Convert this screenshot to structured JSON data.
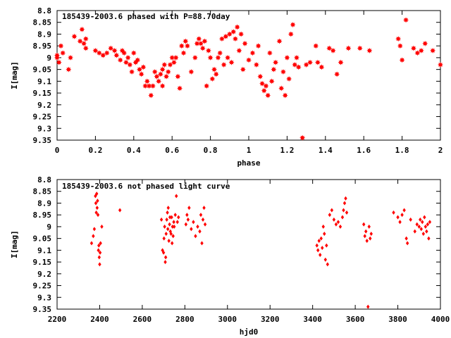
{
  "chart_data": [
    {
      "type": "scatter",
      "title": "185439-2003.6 phased with P=88.70day",
      "xlabel": "phase",
      "ylabel": "I[mag]",
      "xlim": [
        0,
        2
      ],
      "ylim": [
        8.8,
        9.35
      ],
      "y_inverted": true,
      "grid": false,
      "marker": "star",
      "color": "#ff0000",
      "x_ticks": [
        "0",
        "0.2",
        "0.4",
        "0.6",
        "0.8",
        "1",
        "1.2",
        "1.4",
        "1.6",
        "1.8",
        "2"
      ],
      "y_ticks": [
        "8.8",
        "8.85",
        "8.9",
        "8.95",
        "9",
        "9.05",
        "9.1",
        "9.15",
        "9.2",
        "9.25",
        "9.3",
        "9.35"
      ],
      "points": [
        [
          0.0,
          9.0
        ],
        [
          0.0,
          8.99
        ],
        [
          0.01,
          9.02
        ],
        [
          0.02,
          8.95
        ],
        [
          0.03,
          8.98
        ],
        [
          0.06,
          9.05
        ],
        [
          0.07,
          9.0
        ],
        [
          0.09,
          8.91
        ],
        [
          0.12,
          8.93
        ],
        [
          0.13,
          8.88
        ],
        [
          0.14,
          8.94
        ],
        [
          0.15,
          8.96
        ],
        [
          0.15,
          8.92
        ],
        [
          0.2,
          8.97
        ],
        [
          0.22,
          8.98
        ],
        [
          0.24,
          8.99
        ],
        [
          0.26,
          8.98
        ],
        [
          0.28,
          8.96
        ],
        [
          0.3,
          8.97
        ],
        [
          0.31,
          8.99
        ],
        [
          0.33,
          9.01
        ],
        [
          0.34,
          8.97
        ],
        [
          0.35,
          8.98
        ],
        [
          0.36,
          9.02
        ],
        [
          0.37,
          9.0
        ],
        [
          0.38,
          9.03
        ],
        [
          0.39,
          9.06
        ],
        [
          0.4,
          8.98
        ],
        [
          0.41,
          9.02
        ],
        [
          0.42,
          9.01
        ],
        [
          0.43,
          9.05
        ],
        [
          0.44,
          9.07
        ],
        [
          0.45,
          9.04
        ],
        [
          0.46,
          9.12
        ],
        [
          0.47,
          9.1
        ],
        [
          0.48,
          9.12
        ],
        [
          0.49,
          9.16
        ],
        [
          0.5,
          9.12
        ],
        [
          0.51,
          9.06
        ],
        [
          0.52,
          9.08
        ],
        [
          0.53,
          9.1
        ],
        [
          0.54,
          9.07
        ],
        [
          0.55,
          9.12
        ],
        [
          0.55,
          9.05
        ],
        [
          0.56,
          9.03
        ],
        [
          0.57,
          9.08
        ],
        [
          0.58,
          9.06
        ],
        [
          0.59,
          9.03
        ],
        [
          0.6,
          9.0
        ],
        [
          0.61,
          9.02
        ],
        [
          0.62,
          9.0
        ],
        [
          0.63,
          9.08
        ],
        [
          0.64,
          9.13
        ],
        [
          0.65,
          8.95
        ],
        [
          0.66,
          8.98
        ],
        [
          0.67,
          8.93
        ],
        [
          0.68,
          8.95
        ],
        [
          0.7,
          9.06
        ],
        [
          0.72,
          9.0
        ],
        [
          0.73,
          8.94
        ],
        [
          0.74,
          8.92
        ],
        [
          0.75,
          8.94
        ],
        [
          0.76,
          8.96
        ],
        [
          0.77,
          8.93
        ],
        [
          0.78,
          9.12
        ],
        [
          0.79,
          8.97
        ],
        [
          0.8,
          9.0
        ],
        [
          0.81,
          9.09
        ],
        [
          0.82,
          9.05
        ],
        [
          0.83,
          9.07
        ],
        [
          0.84,
          9.0
        ],
        [
          0.85,
          8.98
        ],
        [
          0.86,
          8.92
        ],
        [
          0.87,
          9.03
        ],
        [
          0.88,
          8.91
        ],
        [
          0.89,
          9.0
        ],
        [
          0.9,
          8.9
        ],
        [
          0.91,
          9.02
        ],
        [
          0.92,
          8.89
        ],
        [
          0.93,
          8.92
        ],
        [
          0.94,
          8.87
        ],
        [
          0.95,
          8.97
        ],
        [
          0.96,
          8.9
        ],
        [
          0.97,
          9.05
        ],
        [
          0.98,
          8.94
        ],
        [
          1.0,
          9.01
        ],
        [
          1.02,
          8.98
        ],
        [
          1.04,
          9.03
        ],
        [
          1.05,
          8.95
        ],
        [
          1.06,
          9.08
        ],
        [
          1.07,
          9.11
        ],
        [
          1.08,
          9.14
        ],
        [
          1.09,
          9.12
        ],
        [
          1.1,
          9.16
        ],
        [
          1.11,
          8.98
        ],
        [
          1.12,
          9.1
        ],
        [
          1.13,
          9.05
        ],
        [
          1.14,
          9.02
        ],
        [
          1.16,
          8.93
        ],
        [
          1.17,
          9.13
        ],
        [
          1.18,
          9.06
        ],
        [
          1.19,
          9.16
        ],
        [
          1.2,
          9.0
        ],
        [
          1.21,
          9.09
        ],
        [
          1.22,
          8.9
        ],
        [
          1.23,
          8.86
        ],
        [
          1.24,
          9.03
        ],
        [
          1.25,
          9.0
        ],
        [
          1.26,
          9.04
        ],
        [
          1.28,
          9.34
        ],
        [
          1.3,
          9.03
        ],
        [
          1.32,
          9.02
        ],
        [
          1.35,
          8.95
        ],
        [
          1.36,
          9.02
        ],
        [
          1.38,
          9.04
        ],
        [
          1.42,
          8.96
        ],
        [
          1.44,
          8.97
        ],
        [
          1.46,
          9.07
        ],
        [
          1.48,
          9.02
        ],
        [
          1.52,
          8.96
        ],
        [
          1.58,
          8.96
        ],
        [
          1.63,
          8.97
        ],
        [
          1.78,
          8.92
        ],
        [
          1.79,
          8.95
        ],
        [
          1.8,
          9.01
        ],
        [
          1.82,
          8.84
        ],
        [
          1.86,
          8.96
        ],
        [
          1.88,
          8.98
        ],
        [
          1.9,
          8.97
        ],
        [
          1.92,
          8.94
        ],
        [
          1.96,
          8.97
        ],
        [
          2.0,
          9.03
        ]
      ]
    },
    {
      "type": "scatter",
      "title": "185439-2003.6 not phased light curve",
      "xlabel": "hjd0",
      "ylabel": "I[mag]",
      "xlim": [
        2200,
        4000
      ],
      "ylim": [
        8.8,
        9.35
      ],
      "y_inverted": true,
      "grid": false,
      "marker": "diamond",
      "color": "#ff0000",
      "x_ticks": [
        "2200",
        "2400",
        "2600",
        "2800",
        "3000",
        "3200",
        "3400",
        "3600",
        "3800",
        "4000"
      ],
      "y_ticks": [
        "8.8",
        "8.85",
        "8.9",
        "8.95",
        "9",
        "9.05",
        "9.1",
        "9.15",
        "9.2",
        "9.25",
        "9.3",
        "9.35"
      ],
      "points": [
        [
          2362,
          9.07
        ],
        [
          2370,
          9.04
        ],
        [
          2375,
          9.01
        ],
        [
          2380,
          8.87
        ],
        [
          2382,
          8.9
        ],
        [
          2384,
          8.94
        ],
        [
          2386,
          8.86
        ],
        [
          2388,
          8.92
        ],
        [
          2390,
          8.89
        ],
        [
          2392,
          8.95
        ],
        [
          2394,
          9.1
        ],
        [
          2396,
          9.08
        ],
        [
          2398,
          9.13
        ],
        [
          2400,
          9.16
        ],
        [
          2402,
          9.11
        ],
        [
          2404,
          9.07
        ],
        [
          2410,
          9.0
        ],
        [
          2495,
          8.93
        ],
        [
          2690,
          8.97
        ],
        [
          2695,
          9.1
        ],
        [
          2700,
          9.11
        ],
        [
          2702,
          9.05
        ],
        [
          2705,
          9.0
        ],
        [
          2708,
          9.15
        ],
        [
          2710,
          9.13
        ],
        [
          2712,
          9.03
        ],
        [
          2715,
          8.97
        ],
        [
          2718,
          8.94
        ],
        [
          2720,
          9.01
        ],
        [
          2722,
          8.92
        ],
        [
          2725,
          9.06
        ],
        [
          2728,
          8.99
        ],
        [
          2730,
          8.96
        ],
        [
          2732,
          9.02
        ],
        [
          2735,
          9.03
        ],
        [
          2738,
          8.96
        ],
        [
          2740,
          9.07
        ],
        [
          2742,
          9.0
        ],
        [
          2745,
          9.04
        ],
        [
          2748,
          8.98
        ],
        [
          2750,
          9.0
        ],
        [
          2755,
          8.95
        ],
        [
          2760,
          8.87
        ],
        [
          2765,
          8.98
        ],
        [
          2770,
          8.96
        ],
        [
          2805,
          8.99
        ],
        [
          2810,
          8.95
        ],
        [
          2815,
          8.97
        ],
        [
          2820,
          8.92
        ],
        [
          2830,
          9.01
        ],
        [
          2840,
          8.98
        ],
        [
          2850,
          9.04
        ],
        [
          2860,
          9.0
        ],
        [
          2870,
          9.02
        ],
        [
          2875,
          8.95
        ],
        [
          2880,
          9.07
        ],
        [
          2885,
          8.97
        ],
        [
          2890,
          8.92
        ],
        [
          2895,
          8.99
        ],
        [
          3420,
          9.08
        ],
        [
          3425,
          9.1
        ],
        [
          3430,
          9.06
        ],
        [
          3435,
          9.12
        ],
        [
          3440,
          9.05
        ],
        [
          3445,
          9.09
        ],
        [
          3450,
          9.0
        ],
        [
          3455,
          9.03
        ],
        [
          3460,
          9.14
        ],
        [
          3465,
          9.08
        ],
        [
          3470,
          9.16
        ],
        [
          3480,
          8.95
        ],
        [
          3490,
          8.93
        ],
        [
          3500,
          8.97
        ],
        [
          3510,
          8.99
        ],
        [
          3520,
          8.98
        ],
        [
          3530,
          9.0
        ],
        [
          3540,
          8.96
        ],
        [
          3545,
          8.93
        ],
        [
          3550,
          8.9
        ],
        [
          3555,
          8.88
        ],
        [
          3560,
          8.94
        ],
        [
          3640,
          8.99
        ],
        [
          3645,
          9.04
        ],
        [
          3650,
          9.02
        ],
        [
          3655,
          9.06
        ],
        [
          3660,
          9.34
        ],
        [
          3665,
          9.0
        ],
        [
          3670,
          9.05
        ],
        [
          3675,
          9.03
        ],
        [
          3780,
          8.94
        ],
        [
          3800,
          8.96
        ],
        [
          3810,
          8.98
        ],
        [
          3820,
          8.95
        ],
        [
          3830,
          8.93
        ],
        [
          3840,
          9.05
        ],
        [
          3845,
          9.07
        ],
        [
          3860,
          8.97
        ],
        [
          3880,
          9.02
        ],
        [
          3890,
          8.99
        ],
        [
          3900,
          9.0
        ],
        [
          3905,
          8.97
        ],
        [
          3910,
          9.01
        ],
        [
          3915,
          8.98
        ],
        [
          3920,
          9.03
        ],
        [
          3925,
          8.96
        ],
        [
          3930,
          9.0
        ],
        [
          3935,
          9.02
        ],
        [
          3940,
          8.99
        ],
        [
          3945,
          9.05
        ],
        [
          3950,
          8.98
        ]
      ]
    }
  ]
}
